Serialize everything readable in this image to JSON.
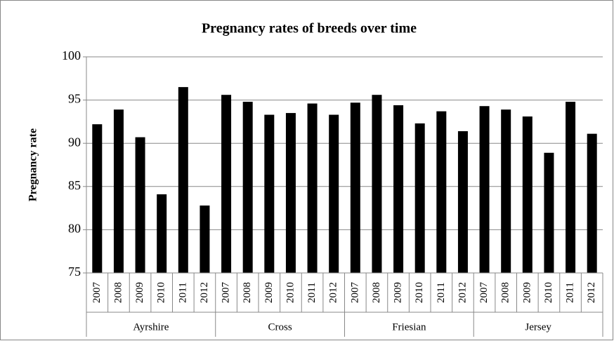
{
  "chart_data": {
    "type": "bar",
    "title": "Pregnancy rates of breeds over time",
    "y_label": "Pregnancy rate",
    "groups": [
      {
        "name": "Ayrshire",
        "categories": [
          "2007",
          "2008",
          "2009",
          "2010",
          "2011",
          "2012"
        ],
        "values": [
          92.2,
          93.9,
          90.7,
          84.1,
          96.5,
          82.8
        ]
      },
      {
        "name": "Cross",
        "categories": [
          "2007",
          "2008",
          "2009",
          "2010",
          "2011",
          "2012"
        ],
        "values": [
          95.6,
          94.8,
          93.3,
          93.5,
          94.6,
          93.3
        ]
      },
      {
        "name": "Friesian",
        "categories": [
          "2007",
          "2008",
          "2009",
          "2010",
          "2011",
          "2012"
        ],
        "values": [
          94.7,
          95.6,
          94.4,
          92.3,
          93.7,
          91.4
        ]
      },
      {
        "name": "Jersey",
        "categories": [
          "2007",
          "2008",
          "2009",
          "2010",
          "2011",
          "2012"
        ],
        "values": [
          94.3,
          93.9,
          93.1,
          88.9,
          94.8,
          91.1
        ]
      }
    ],
    "color": "#000000",
    "ylim": [
      75,
      100
    ],
    "yticks": [
      75,
      80,
      85,
      90,
      95,
      100
    ],
    "grid": true
  }
}
